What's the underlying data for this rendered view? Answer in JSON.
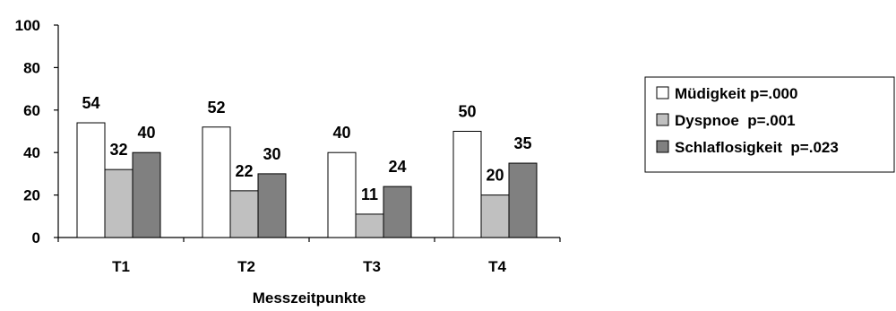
{
  "chart_data": {
    "type": "bar",
    "categories": [
      "T1",
      "T2",
      "T3",
      "T4"
    ],
    "series": [
      {
        "name": "Müdigkeit p=.000",
        "values": [
          54,
          52,
          40,
          50
        ],
        "color": "#ffffff"
      },
      {
        "name": "Dyspnoe  p=.001",
        "values": [
          32,
          22,
          11,
          20
        ],
        "color": "#c0c0c0"
      },
      {
        "name": "Schlaflosigkeit  p=.023",
        "values": [
          40,
          30,
          24,
          35
        ],
        "color": "#808080"
      }
    ],
    "xlabel": "Messzeitpunkte",
    "ylabel": "",
    "ylim": [
      0,
      100
    ],
    "yticks": [
      0,
      20,
      40,
      60,
      80,
      100
    ],
    "grid": false,
    "legend_position": "right"
  }
}
